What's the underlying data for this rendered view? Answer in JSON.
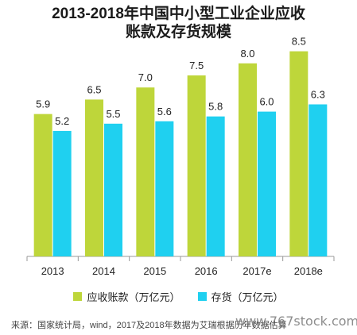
{
  "title_lines": [
    "2013-2018年中国中小型工业企业应收",
    "账款及存货规模"
  ],
  "colors": {
    "receivables": "#bed63a",
    "inventory": "#1fd0f0",
    "axis": "#999999"
  },
  "legend": {
    "receivables": "应收账款（万亿元）",
    "inventory": "存货（万亿元）"
  },
  "source": "来源：国家统计局，wind，2017及2018年数据为艾瑞根据历年数据估算",
  "watermark": "www.767stock.com",
  "chart_data": {
    "type": "bar",
    "categories": [
      "2013",
      "2014",
      "2015",
      "2016",
      "2017e",
      "2018e"
    ],
    "series": [
      {
        "name": "应收账款（万亿元）",
        "values": [
          5.9,
          6.5,
          7.0,
          7.5,
          8.0,
          8.5
        ]
      },
      {
        "name": "存货（万亿元）",
        "values": [
          5.2,
          5.5,
          5.6,
          5.8,
          6.0,
          6.3
        ]
      }
    ],
    "ylim": [
      0,
      9.2
    ],
    "grid": false,
    "legend_position": "bottom"
  }
}
